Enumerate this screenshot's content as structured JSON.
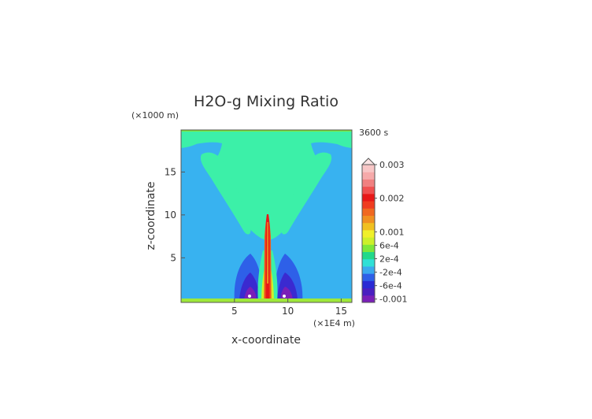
{
  "chart_data": {
    "type": "heatmap",
    "title": "H2O-g Mixing Ratio",
    "time_label": "3600 s",
    "xlabel": "x-coordinate",
    "ylabel": "z-coordinate",
    "x_unit_label": "(×1E4 m)",
    "y_unit_label": "(×1000 m)",
    "xlim": [
      0,
      16
    ],
    "ylim": [
      -0.2,
      19.9
    ],
    "x_ticks": [
      5,
      10,
      15
    ],
    "y_ticks": [
      5,
      10,
      15
    ],
    "x_tick_labels": [
      "5",
      "10",
      "15"
    ],
    "y_tick_labels": [
      "5",
      "10",
      "15"
    ],
    "grid": false,
    "legend": {
      "placement": "right",
      "labels": [
        "0.003",
        "0.002",
        "0.001",
        "6e-4",
        "2e-4",
        "-2e-4",
        "-6e-4",
        "-0.001"
      ],
      "label_values": [
        0.003,
        0.002,
        0.001,
        0.0006,
        0.0002,
        -0.0002,
        -0.0006,
        -0.001
      ],
      "range": [
        -0.0011,
        0.003
      ],
      "colors": [
        "#7a1fb8",
        "#4a1fc0",
        "#2a2ad4",
        "#2e60e8",
        "#3aa9ee",
        "#2fe0d6",
        "#22d98a",
        "#7ee83a",
        "#cdf02a",
        "#f0f02a",
        "#f0c020",
        "#f09020",
        "#f06820",
        "#f03c20",
        "#e81818",
        "#f05050",
        "#f08080",
        "#f6aaaa",
        "#f8c6c6"
      ]
    },
    "colors": {
      "background_field": "#38b2f0",
      "plume": "#3cf0a8",
      "surface_band": "#9ee83a",
      "core": "#e81818"
    }
  }
}
